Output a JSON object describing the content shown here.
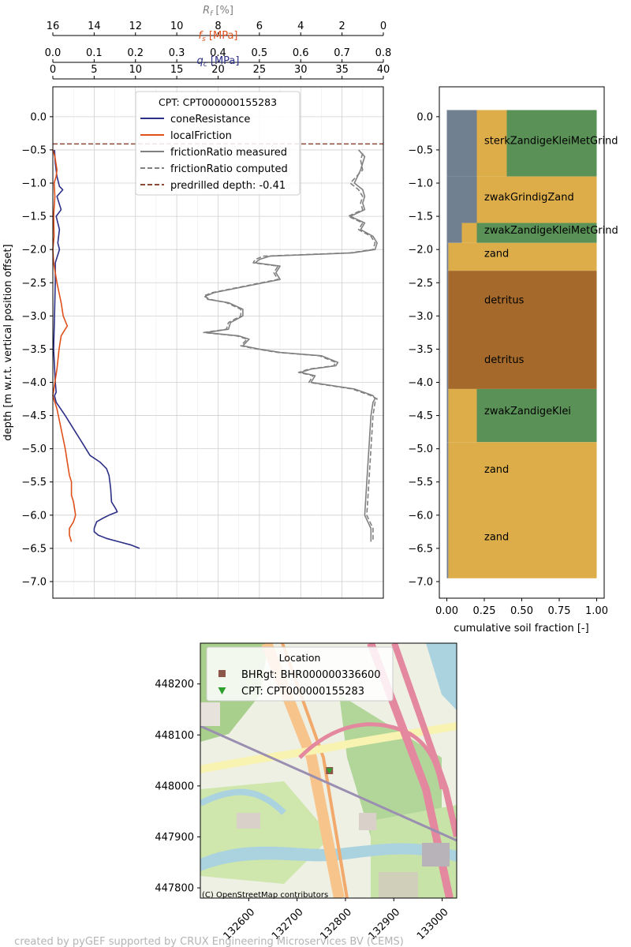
{
  "colors": {
    "cone": "#2b2f86",
    "friction": "#e0501b",
    "ratio": "#808080",
    "predrill": "#8b4a35",
    "grid": "#d0d0d0",
    "soil_grey": "#708090",
    "soil_sand": "#ddad4a",
    "soil_green": "#5a9156",
    "soil_brown": "#a56a2b",
    "bhr_marker": "#8c564b",
    "cpt_marker": "#2ca02c",
    "footer": "#b4b4b4"
  },
  "footer": "created by pyGEF supported by CRUX Engineering Microservices BV (CEMS)",
  "chart_data": [
    {
      "type": "line",
      "name": "cpt",
      "legend_title": "CPT: CPT000000155283",
      "legend_position": "upper-center",
      "grid": true,
      "ylabel": "depth [m w.r.t. vertical position offset]",
      "ylim": [
        -7.25,
        0.45
      ],
      "yticks": [
        0.0,
        -0.5,
        -1.0,
        -1.5,
        -2.0,
        -2.5,
        -3.0,
        -3.5,
        -4.0,
        -4.5,
        -5.0,
        -5.5,
        -6.0,
        -6.5,
        -7.0
      ],
      "ytick_labels": [
        "0.0",
        "−0.5",
        "−1.0",
        "−1.5",
        "−2.0",
        "−2.5",
        "−3.0",
        "−3.5",
        "−4.0",
        "−4.5",
        "−5.0",
        "−5.5",
        "−6.0",
        "−6.5",
        "−7.0"
      ],
      "axes": {
        "rf": {
          "label_symbol": "R",
          "label_sub": "f",
          "label_unit": " [%]",
          "range": [
            16,
            0
          ],
          "ticks": [
            16,
            14,
            12,
            10,
            8,
            6,
            4,
            2,
            0
          ],
          "tick_labels": [
            "16",
            "14",
            "12",
            "10",
            "8",
            "6",
            "4",
            "2",
            "0"
          ]
        },
        "fs": {
          "label_symbol": "f",
          "label_sub": "s",
          "label_unit": " [MPa]",
          "range": [
            0.0,
            0.8
          ],
          "ticks": [
            0.0,
            0.1,
            0.2,
            0.3,
            0.4,
            0.5,
            0.6,
            0.7,
            0.8
          ],
          "tick_labels": [
            "0.0",
            "0.1",
            "0.2",
            "0.3",
            "0.4",
            "0.5",
            "0.6",
            "0.7",
            "0.8"
          ]
        },
        "qc": {
          "label_symbol": "q",
          "label_sub": "c",
          "label_unit": " [MPa]",
          "range": [
            0,
            40
          ],
          "ticks": [
            0,
            5,
            10,
            15,
            20,
            25,
            30,
            35,
            40
          ],
          "tick_labels": [
            "0",
            "5",
            "10",
            "15",
            "20",
            "25",
            "30",
            "35",
            "40"
          ]
        }
      },
      "series": [
        {
          "name": "coneResistance",
          "axis": "qc",
          "style": "solid",
          "depth": [
            -0.5,
            -0.7,
            -0.9,
            -1.05,
            -1.1,
            -1.2,
            -1.4,
            -1.5,
            -1.7,
            -1.9,
            -2.0,
            -2.2,
            -2.5,
            -3.0,
            -3.5,
            -4.0,
            -4.15,
            -4.2,
            -4.3,
            -4.5,
            -4.7,
            -4.9,
            -5.1,
            -5.2,
            -5.3,
            -5.4,
            -5.5,
            -5.6,
            -5.8,
            -5.9,
            -5.95,
            -6.0,
            -6.05,
            -6.1,
            -6.2,
            -6.25,
            -6.3,
            -6.35,
            -6.4,
            -6.45,
            -6.5
          ],
          "values": [
            0.2,
            0.3,
            0.5,
            0.8,
            1.2,
            0.5,
            1.0,
            0.4,
            0.8,
            0.6,
            0.8,
            0.3,
            0.3,
            0.2,
            0.1,
            0.3,
            0.4,
            0.2,
            0.4,
            1.5,
            2.5,
            3.5,
            4.5,
            5.7,
            6.5,
            6.8,
            6.9,
            7.0,
            7.1,
            7.6,
            7.8,
            6.8,
            6.0,
            5.3,
            5.0,
            5.0,
            5.5,
            6.5,
            8.0,
            9.5,
            10.5
          ]
        },
        {
          "name": "localFriction",
          "axis": "fs",
          "style": "solid",
          "depth": [
            -0.5,
            -0.6,
            -0.8,
            -0.9,
            -1.0,
            -1.2,
            -1.5,
            -1.8,
            -2.0,
            -2.2,
            -2.5,
            -2.8,
            -3.0,
            -3.15,
            -3.3,
            -3.5,
            -3.8,
            -4.0,
            -4.2,
            -4.4,
            -4.7,
            -5.0,
            -5.2,
            -5.4,
            -5.5,
            -5.7,
            -5.8,
            -6.0,
            -6.1,
            -6.2,
            -6.3,
            -6.4
          ],
          "values": [
            0.0,
            0.005,
            0.01,
            0.008,
            0.003,
            0.005,
            0.002,
            0.003,
            0.0,
            0.002,
            0.01,
            0.02,
            0.025,
            0.035,
            0.02,
            0.015,
            0.01,
            0.005,
            0.0,
            0.01,
            0.02,
            0.03,
            0.035,
            0.04,
            0.045,
            0.045,
            0.05,
            0.055,
            0.05,
            0.04,
            0.04,
            0.045
          ]
        },
        {
          "name": "frictionRatio measured",
          "axis": "rf",
          "style": "solid",
          "depth": [
            -0.5,
            -0.6,
            -0.8,
            -1.0,
            -1.1,
            -1.2,
            -1.3,
            -1.4,
            -1.5,
            -1.6,
            -1.7,
            -1.8,
            -1.9,
            -2.0,
            -2.05,
            -2.1,
            -2.15,
            -2.2,
            -2.25,
            -2.35,
            -2.45,
            -2.65,
            -2.7,
            -2.75,
            -2.8,
            -2.9,
            -3.0,
            -3.1,
            -3.2,
            -3.25,
            -3.3,
            -3.35,
            -3.45,
            -3.5,
            -3.55,
            -3.6,
            -3.7,
            -3.75,
            -3.8,
            -3.85,
            -3.9,
            -4.0,
            -4.1,
            -4.2,
            -4.25,
            -4.3,
            -4.5,
            -5.0,
            -5.5,
            -6.0,
            -6.2,
            -6.4
          ],
          "values": [
            1.2,
            0.9,
            1.1,
            1.4,
            1.0,
            0.9,
            1.0,
            0.9,
            1.6,
            0.9,
            1.1,
            0.5,
            0.3,
            0.4,
            1.5,
            5.5,
            6.0,
            6.2,
            5.0,
            5.2,
            5.0,
            8.2,
            8.6,
            8.5,
            7.5,
            6.8,
            6.8,
            7.4,
            7.5,
            8.6,
            7.0,
            6.5,
            6.8,
            6.0,
            5.0,
            3.0,
            2.2,
            2.3,
            3.5,
            4.0,
            3.3,
            3.5,
            1.4,
            0.5,
            0.4,
            0.5,
            0.6,
            0.7,
            0.8,
            0.9,
            0.6,
            0.6
          ]
        },
        {
          "name": "frictionRatio computed",
          "axis": "rf",
          "style": "dashed",
          "depth": [
            -0.55,
            -0.65,
            -0.8,
            -1.0,
            -1.1,
            -1.2,
            -1.3,
            -1.4,
            -1.5,
            -1.6,
            -1.7,
            -1.8,
            -1.9,
            -2.0,
            -2.05,
            -2.1,
            -2.15,
            -2.2,
            -2.25,
            -2.35,
            -2.45,
            -2.65,
            -2.7,
            -2.75,
            -2.8,
            -2.9,
            -3.0,
            -3.1,
            -3.2,
            -3.25,
            -3.3,
            -3.35,
            -3.45,
            -3.5,
            -3.55,
            -3.6,
            -3.7,
            -3.75,
            -3.8,
            -3.85,
            -3.9,
            -4.0,
            -4.1,
            -4.2,
            -4.25,
            -4.3,
            -4.5,
            -5.0,
            -5.5,
            -6.0,
            -6.2,
            -6.4
          ],
          "values": [
            1.0,
            1.1,
            1.0,
            1.6,
            1.2,
            1.0,
            1.1,
            1.0,
            1.7,
            1.0,
            1.2,
            0.6,
            0.4,
            0.5,
            1.6,
            5.8,
            6.2,
            6.3,
            5.1,
            5.3,
            5.1,
            8.3,
            8.7,
            8.4,
            7.6,
            6.9,
            6.9,
            7.5,
            7.6,
            8.7,
            7.1,
            6.6,
            6.9,
            6.1,
            5.1,
            3.1,
            2.3,
            2.4,
            3.6,
            4.1,
            3.4,
            3.6,
            1.5,
            0.6,
            0.3,
            0.4,
            0.5,
            0.6,
            0.7,
            0.8,
            0.5,
            0.5
          ]
        },
        {
          "name": "predrilled depth: -0.41",
          "style": "dashed-horizontal",
          "depth": -0.41
        }
      ]
    },
    {
      "type": "bar",
      "name": "soil",
      "orientation": "horizontal-stacked",
      "xlabel": "cumulative soil fraction [-]",
      "xlim": [
        -0.05,
        1.05
      ],
      "ylim": [
        -7.25,
        0.45
      ],
      "xticks": [
        0.0,
        0.25,
        0.5,
        0.75,
        1.0
      ],
      "xtick_labels": [
        "0.00",
        "0.25",
        "0.50",
        "0.75",
        "1.00"
      ],
      "yticks": [
        0.0,
        -0.5,
        -1.0,
        -1.5,
        -2.0,
        -2.5,
        -3.0,
        -3.5,
        -4.0,
        -4.5,
        -5.0,
        -5.5,
        -6.0,
        -6.5,
        -7.0
      ],
      "ytick_labels": [
        "0.0",
        "−0.5",
        "−1.0",
        "−1.5",
        "−2.0",
        "−2.5",
        "−3.0",
        "−3.5",
        "−4.0",
        "−4.5",
        "−5.0",
        "−5.5",
        "−6.0",
        "−6.5",
        "−7.0"
      ],
      "layers": [
        {
          "top": 0.1,
          "bottom": -0.9,
          "label": "sterkZandigeKleiMetGrind",
          "label_depth": -0.35,
          "fractions": [
            {
              "soil": "grey",
              "value": 0.2
            },
            {
              "soil": "sand",
              "value": 0.2
            },
            {
              "soil": "green",
              "value": 0.6
            }
          ]
        },
        {
          "top": -0.9,
          "bottom": -1.6,
          "label": "zwakGrindigZand",
          "label_depth": -1.2,
          "fractions": [
            {
              "soil": "grey",
              "value": 0.2
            },
            {
              "soil": "sand",
              "value": 0.8
            }
          ]
        },
        {
          "top": -1.6,
          "bottom": -1.9,
          "label": "zwakZandigeKleiMetGrind",
          "label_depth": -1.7,
          "fractions": [
            {
              "soil": "grey",
              "value": 0.1
            },
            {
              "soil": "sand",
              "value": 0.1
            },
            {
              "soil": "green",
              "value": 0.8
            }
          ]
        },
        {
          "top": -1.9,
          "bottom": -2.32,
          "label": "zand",
          "label_depth": -2.05,
          "fractions": [
            {
              "soil": "grey",
              "value": 0.01
            },
            {
              "soil": "sand",
              "value": 0.99
            }
          ]
        },
        {
          "top": -2.32,
          "bottom": -4.1,
          "label": "detritus",
          "label_depth": -2.75,
          "fractions": [
            {
              "soil": "grey",
              "value": 0.01
            },
            {
              "soil": "brown",
              "value": 0.99
            }
          ]
        },
        {
          "top": -2.32,
          "bottom": -4.1,
          "label": "detritus",
          "label_depth": -3.65,
          "fractions": []
        },
        {
          "top": -4.1,
          "bottom": -4.9,
          "label": "zwakZandigeKlei",
          "label_depth": -4.42,
          "fractions": [
            {
              "soil": "grey",
              "value": 0.01
            },
            {
              "soil": "sand",
              "value": 0.19
            },
            {
              "soil": "green",
              "value": 0.8
            }
          ]
        },
        {
          "top": -4.9,
          "bottom": -6.95,
          "label": "zand",
          "label_depth": -5.3,
          "fractions": [
            {
              "soil": "grey",
              "value": 0.01
            },
            {
              "soil": "sand",
              "value": 0.99
            }
          ]
        },
        {
          "top": -4.9,
          "bottom": -6.95,
          "label": "zand",
          "label_depth": -6.32,
          "fractions": []
        }
      ]
    },
    {
      "type": "scatter",
      "name": "location",
      "legend_title": "Location",
      "legend_position": "upper-left",
      "xlim": [
        132500,
        133030
      ],
      "ylim": [
        447780,
        448280
      ],
      "xticks": [
        132600,
        132700,
        132800,
        132900,
        133000
      ],
      "xtick_labels": [
        "132600",
        "132700",
        "132800",
        "132900",
        "133000"
      ],
      "yticks": [
        447800,
        447900,
        448000,
        448100,
        448200
      ],
      "ytick_labels": [
        "447800",
        "447900",
        "448000",
        "448100",
        "448200"
      ],
      "attribution": "(C) OpenStreetMap contributors",
      "points": [
        {
          "name": "BHRgt: BHR000000336600",
          "x": 132767,
          "y": 448030,
          "marker": "square"
        },
        {
          "name": "CPT: CPT000000155283",
          "x": 132767,
          "y": 448030,
          "marker": "triangle"
        }
      ]
    }
  ]
}
